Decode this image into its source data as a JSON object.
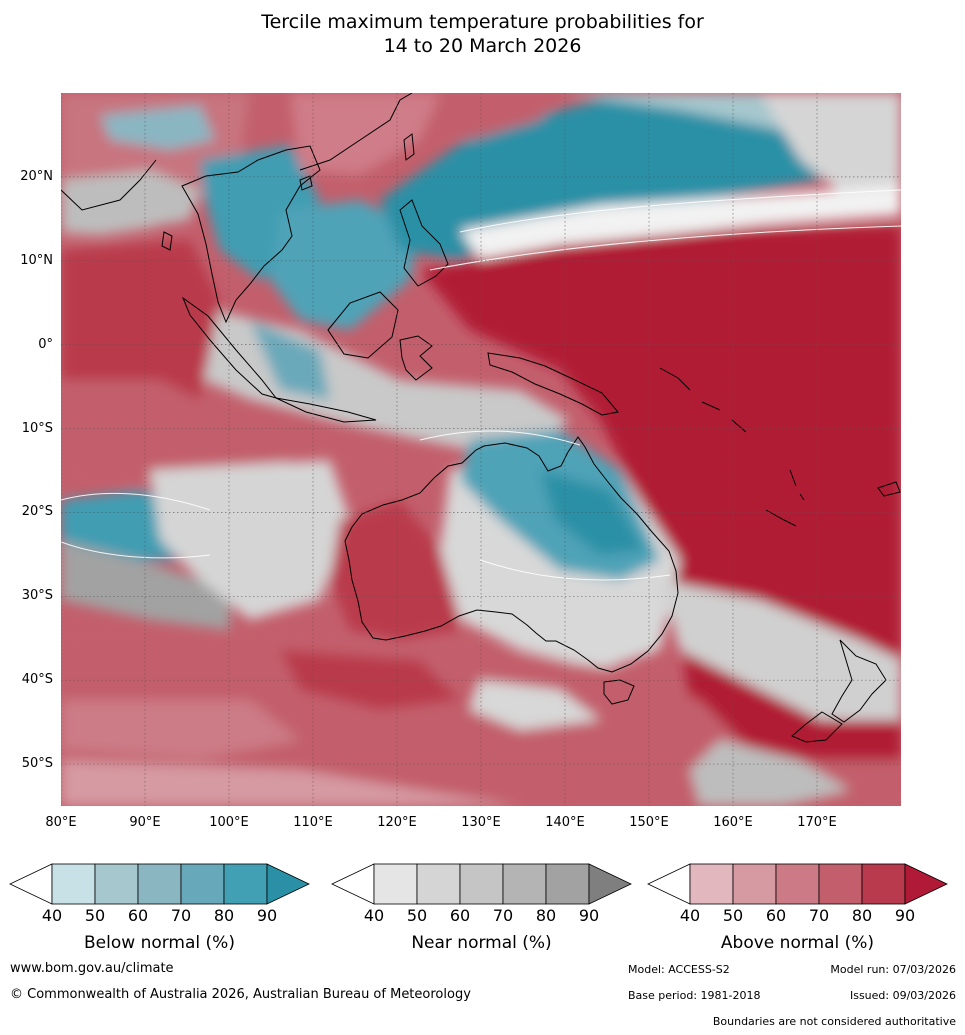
{
  "title": {
    "line1": "Tercile maximum temperature probabilities for",
    "line2": "14 to 20 March 2026"
  },
  "map": {
    "lat_labels": [
      "20°N",
      "10°N",
      "0°",
      "10°S",
      "20°S",
      "30°S",
      "40°S",
      "50°S"
    ],
    "lon_labels": [
      "80°E",
      "90°E",
      "100°E",
      "110°E",
      "120°E",
      "130°E",
      "140°E",
      "150°E",
      "160°E",
      "170°E"
    ],
    "lat_values": [
      20,
      10,
      0,
      -10,
      -20,
      -30,
      -40,
      -50
    ],
    "lon_values": [
      80,
      90,
      100,
      110,
      120,
      130,
      140,
      150,
      160,
      170
    ],
    "lon_range": [
      80,
      180
    ],
    "lat_range": [
      -55,
      30
    ]
  },
  "colorbars": [
    {
      "name": "Below normal (%)",
      "ticks": [
        "40",
        "50",
        "60",
        "70",
        "80",
        "90"
      ],
      "colors": [
        "#ffffff",
        "#c7e1e6",
        "#a6c7cd",
        "#8ab6c2",
        "#67a9ba",
        "#42a0b4",
        "#2a90a6"
      ]
    },
    {
      "name": "Near normal (%)",
      "ticks": [
        "40",
        "50",
        "60",
        "70",
        "80",
        "90"
      ],
      "colors": [
        "#ffffff",
        "#e5e5e5",
        "#d5d5d5",
        "#c5c5c5",
        "#b4b4b4",
        "#a2a2a2",
        "#7f7f7f"
      ]
    },
    {
      "name": "Above normal (%)",
      "ticks": [
        "40",
        "50",
        "60",
        "70",
        "80",
        "90"
      ],
      "colors": [
        "#ffffff",
        "#e2b7bd",
        "#d69aa2",
        "#cc7b86",
        "#c35f6c",
        "#b93a4c",
        "#b11a36"
      ]
    }
  ],
  "footer": {
    "website": "www.bom.gov.au/climate",
    "copyright": "© Commonwealth of Australia 2026, Australian Bureau of Meteorology",
    "model": "Model: ACCESS-S2",
    "model_run": "Model run: 07/03/2026",
    "base_period": "Base period: 1981-2018",
    "issued": "Issued: 09/03/2026",
    "disclaimer": "Boundaries are not considered authoritative"
  }
}
